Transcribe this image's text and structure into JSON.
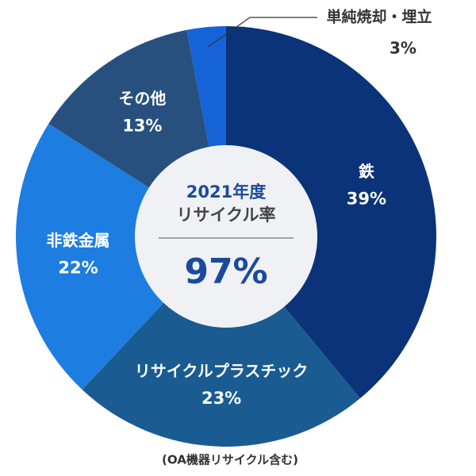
{
  "chart_data": {
    "type": "donut",
    "categories": [
      "鉄",
      "リサイクルプラスチック",
      "非鉄金属",
      "その他",
      "単純焼却・埋立"
    ],
    "values": [
      39,
      23,
      22,
      13,
      3
    ],
    "value_labels": [
      "39%",
      "23%",
      "22%",
      "13%",
      "3%"
    ],
    "colors": [
      "#0b3379",
      "#1a5b92",
      "#1e7de0",
      "#27507f",
      "#1663d8"
    ],
    "center_title": [
      "2021年度",
      "リサイクル率"
    ],
    "center_value": 97,
    "center_value_label": "97%",
    "footnote": "(OA機器リサイクル含む)"
  }
}
